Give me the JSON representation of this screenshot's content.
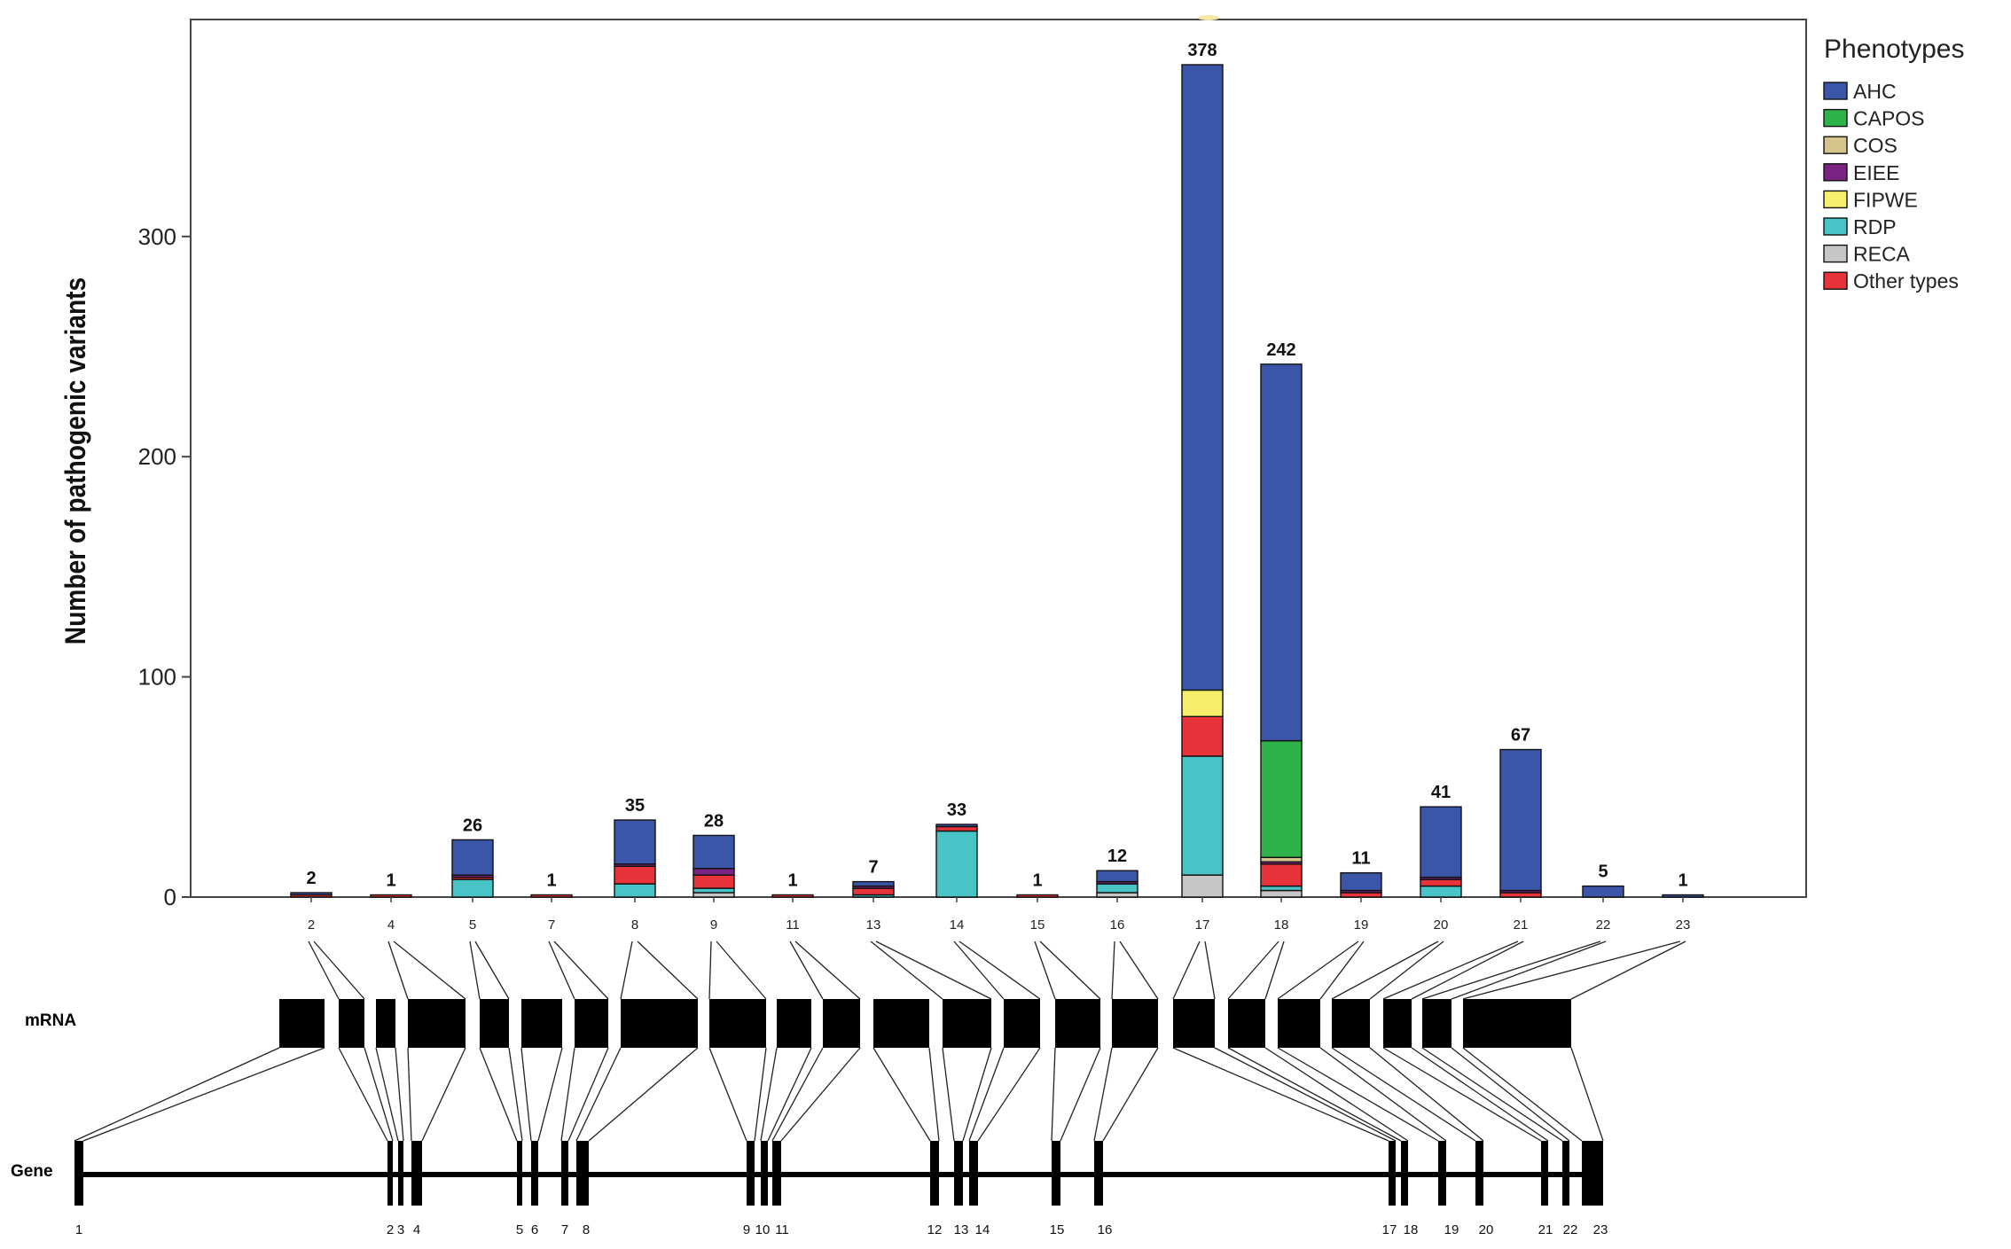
{
  "chart_data": {
    "type": "bar",
    "stacked": true,
    "ylabel": "Number of pathogenic variants",
    "xlabel": "",
    "ylim": [
      0,
      400
    ],
    "y_ticks": [
      0,
      100,
      200,
      300
    ],
    "grid": false,
    "legend_position": "top-right",
    "legend_title": "Phenotypes",
    "categories": [
      "2",
      "4",
      "5",
      "7",
      "8",
      "9",
      "11",
      "13",
      "14",
      "15",
      "16",
      "17",
      "18",
      "19",
      "20",
      "21",
      "22",
      "23"
    ],
    "totals": [
      2,
      1,
      26,
      1,
      35,
      28,
      1,
      7,
      33,
      1,
      12,
      378,
      242,
      11,
      41,
      67,
      5,
      1
    ],
    "series": [
      {
        "name": "AHC",
        "color": "#3b56a8",
        "values": [
          1,
          0,
          16,
          0,
          20,
          15,
          0,
          2,
          1,
          0,
          5,
          284,
          171,
          8,
          32,
          64,
          5,
          1
        ]
      },
      {
        "name": "CAPOS",
        "color": "#2db34a",
        "values": [
          0,
          0,
          0,
          0,
          0,
          0,
          0,
          0,
          0,
          0,
          0,
          0,
          53,
          0,
          0,
          0,
          0,
          0
        ]
      },
      {
        "name": "COS",
        "color": "#d4c48c",
        "values": [
          0,
          0,
          0,
          0,
          0,
          0,
          0,
          0,
          0,
          0,
          0,
          0,
          2,
          0,
          0,
          0,
          0,
          0
        ]
      },
      {
        "name": "EIEE",
        "color": "#7b2382",
        "values": [
          0,
          0,
          1,
          0,
          1,
          3,
          0,
          1,
          0,
          0,
          1,
          0,
          1,
          1,
          1,
          1,
          0,
          0
        ]
      },
      {
        "name": "FIPWE",
        "color": "#f7ef6b",
        "values": [
          0,
          0,
          0,
          0,
          0,
          0,
          0,
          0,
          0,
          0,
          0,
          12,
          0,
          0,
          0,
          0,
          0,
          0
        ]
      },
      {
        "name": "RDP",
        "color": "#48c3c6",
        "values": [
          0,
          0,
          8,
          0,
          6,
          2,
          0,
          1,
          30,
          0,
          4,
          54,
          2,
          0,
          5,
          0,
          0,
          0
        ]
      },
      {
        "name": "RECA",
        "color": "#c6c6c6",
        "values": [
          0,
          0,
          0,
          0,
          0,
          2,
          0,
          0,
          0,
          0,
          2,
          10,
          3,
          0,
          0,
          0,
          0,
          0
        ]
      },
      {
        "name": "Other types",
        "color": "#e8333a",
        "values": [
          1,
          1,
          1,
          1,
          8,
          6,
          1,
          3,
          2,
          1,
          0,
          18,
          10,
          2,
          3,
          2,
          0,
          0
        ]
      }
    ]
  },
  "diagram": {
    "mrna_label": "mRNA",
    "gene_label": "Gene",
    "mrna_exons": [
      "1",
      "2",
      "3",
      "4",
      "5",
      "6",
      "7",
      "8",
      "9",
      "10",
      "11",
      "12",
      "13",
      "14",
      "15",
      "16",
      "17",
      "18",
      "19",
      "20",
      "21",
      "22",
      "23"
    ],
    "gene_exons": [
      "1",
      "2",
      "3",
      "4",
      "5",
      "6",
      "7",
      "8",
      "9",
      "10",
      "11",
      "12",
      "13",
      "14",
      "15",
      "16",
      "17",
      "18",
      "19",
      "20",
      "21",
      "22",
      "23"
    ],
    "gene_exon_labels": [
      "1",
      "2",
      "3",
      "4",
      "5",
      "6",
      "7",
      "8",
      "9",
      "10",
      "11",
      "12",
      "13",
      "14",
      "15",
      "16",
      "17",
      "18",
      "19",
      "20",
      "21",
      "22",
      "23"
    ]
  }
}
